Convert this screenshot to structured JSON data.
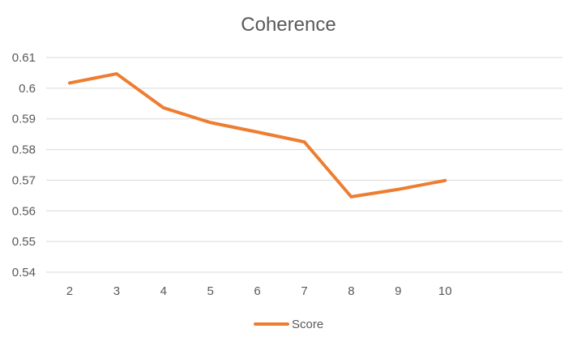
{
  "chart_data": {
    "type": "line",
    "title": "Coherence",
    "xlabel": "",
    "ylabel": "",
    "categories": [
      "2",
      "3",
      "4",
      "5",
      "6",
      "7",
      "8",
      "9",
      "10",
      "",
      ""
    ],
    "series": [
      {
        "name": "Score",
        "values": [
          0.6017,
          0.6047,
          0.5936,
          0.5888,
          0.5857,
          0.5825,
          0.5646,
          0.567,
          0.5699,
          null,
          null
        ],
        "color": "#ED7D31"
      }
    ],
    "yticks": [
      "0.54",
      "0.55",
      "0.56",
      "0.57",
      "0.58",
      "0.59",
      "0.6",
      "0.61"
    ],
    "ylim": [
      0.54,
      0.61
    ],
    "grid": true,
    "legend": "bottom"
  }
}
